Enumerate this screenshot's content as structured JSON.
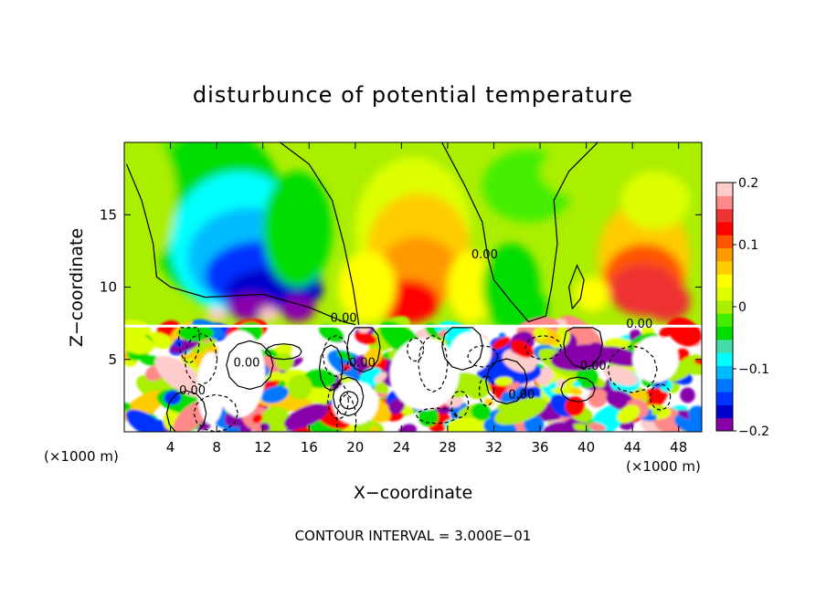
{
  "chart_data": {
    "type": "heatmap",
    "title": "disturbunce of potential temperature",
    "xlabel": "X−coordinate",
    "ylabel": "Z−coordinate",
    "x_unit_left": "(×1000 m)",
    "x_unit_right": "(×1000 m)",
    "xlim": [
      0,
      50
    ],
    "ylim": [
      0,
      20
    ],
    "x_ticks": [
      4,
      8,
      12,
      16,
      20,
      24,
      28,
      32,
      36,
      40,
      44,
      48
    ],
    "x_tick_labels": [
      "4",
      "8",
      "12",
      "16",
      "20",
      "24",
      "28",
      "32",
      "36",
      "40",
      "44",
      "48"
    ],
    "y_ticks": [
      5,
      10,
      15
    ],
    "y_tick_labels": [
      "5",
      "10",
      "15"
    ],
    "colorbar": {
      "min": -0.2,
      "max": 0.2,
      "ticks": [
        0.2,
        0.1,
        0,
        -0.1,
        -0.2
      ],
      "tick_labels": [
        "0.2",
        "0.1",
        "0",
        "−0.1",
        "−0.2"
      ],
      "colors": [
        "#8800aa",
        "#0000cc",
        "#0033ff",
        "#0077ff",
        "#00bbff",
        "#00ffff",
        "#44ddaa",
        "#00dd00",
        "#44ee00",
        "#aaee00",
        "#ddff00",
        "#ffff00",
        "#ffcc00",
        "#ff9900",
        "#ff5500",
        "#ff0000",
        "#ee3333",
        "#ff8888",
        "#ffcccc"
      ]
    },
    "contour_label": "0.00",
    "contour_labels": [
      {
        "x": 19.0,
        "z": 7.6
      },
      {
        "x": 31.2,
        "z": 12.0
      },
      {
        "x": 44.6,
        "z": 7.2
      },
      {
        "x": 10.6,
        "z": 4.5
      },
      {
        "x": 5.9,
        "z": 2.6
      },
      {
        "x": 20.6,
        "z": 4.5
      },
      {
        "x": 34.4,
        "z": 2.3
      },
      {
        "x": 40.6,
        "z": 4.3
      }
    ],
    "features": [
      {
        "x": 13,
        "z": 11,
        "value": -0.2
      },
      {
        "x": 6,
        "z": 17,
        "value": -0.08
      },
      {
        "x": 25.5,
        "z": 13,
        "value": 0.1
      },
      {
        "x": 45,
        "z": 10,
        "value": 0.16
      },
      {
        "x": 33.5,
        "z": 11,
        "value": -0.04
      }
    ],
    "footer": "CONTOUR INTERVAL = 3.000E−01"
  }
}
